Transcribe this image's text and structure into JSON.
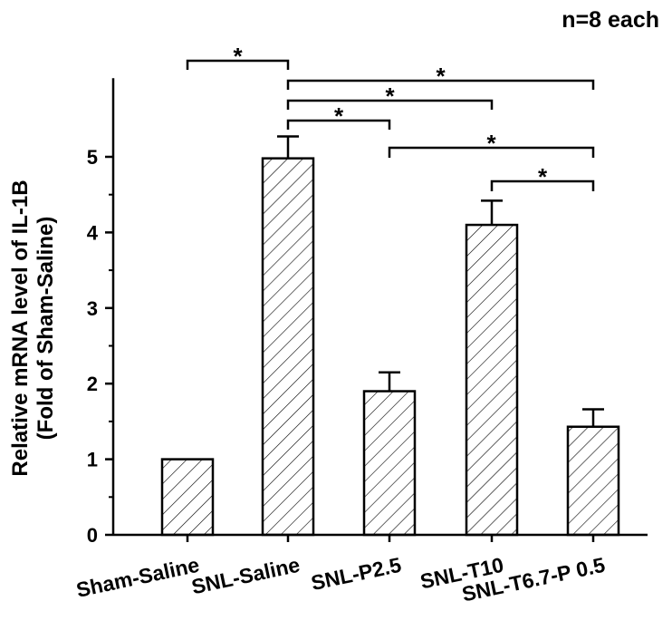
{
  "annotation": "n=8 each",
  "chart_data": {
    "type": "bar",
    "categories": [
      "Sham-Saline",
      "SNL-Saline",
      "SNL-P2.5",
      "SNL-T10",
      "SNL-T6.7-P 0.5"
    ],
    "values": [
      1.0,
      4.98,
      1.9,
      4.1,
      1.43
    ],
    "errors": [
      0.0,
      0.29,
      0.25,
      0.32,
      0.23
    ],
    "ylabel_line1": "Relative mRNA level of IL-1B",
    "ylabel_line2": "(Fold of Sham-Saline)",
    "ylim": [
      0,
      5.8
    ],
    "yticks": [
      0,
      1,
      2,
      3,
      4,
      5
    ],
    "bar_fill": "hatched",
    "grid": false,
    "significance": [
      {
        "from": 0,
        "to": 1,
        "label": "*"
      },
      {
        "from": 1,
        "to": 4,
        "label": "*"
      },
      {
        "from": 1,
        "to": 3,
        "label": "*"
      },
      {
        "from": 1,
        "to": 2,
        "label": "*"
      },
      {
        "from": 2,
        "to": 4,
        "label": "*"
      },
      {
        "from": 3,
        "to": 4,
        "label": "*"
      }
    ]
  }
}
